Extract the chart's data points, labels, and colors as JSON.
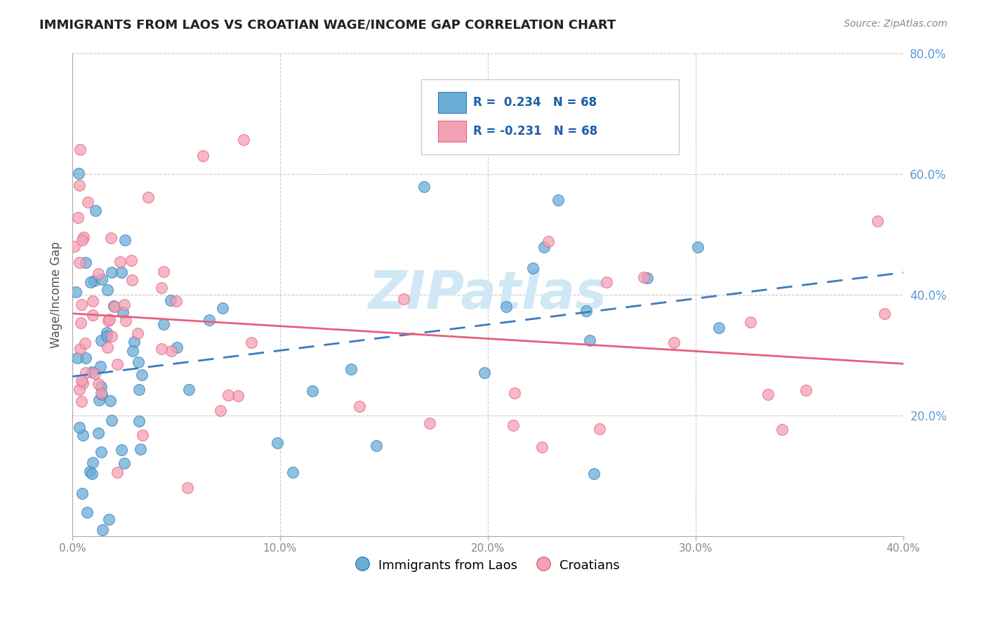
{
  "title": "IMMIGRANTS FROM LAOS VS CROATIAN WAGE/INCOME GAP CORRELATION CHART",
  "source": "Source: ZipAtlas.com",
  "ylabel": "Wage/Income Gap",
  "x_lim": [
    0.0,
    0.4
  ],
  "y_lim": [
    0.0,
    0.8
  ],
  "legend_blue_text": "R =  0.234   N = 68",
  "legend_pink_text": "R = -0.231   N = 68",
  "legend_label_blue": "Immigrants from Laos",
  "legend_label_pink": "Croatians",
  "blue_color": "#6aaed6",
  "pink_color": "#f4a0b5",
  "blue_line_color": "#3a7bbf",
  "pink_line_color": "#e8607a",
  "blue_trendline_color": "#3a7bbf",
  "pink_trendline_color": "#e8607a",
  "watermark_color": "#d0e8f5",
  "blue_R": 0.234,
  "pink_R": -0.231,
  "n": 68
}
